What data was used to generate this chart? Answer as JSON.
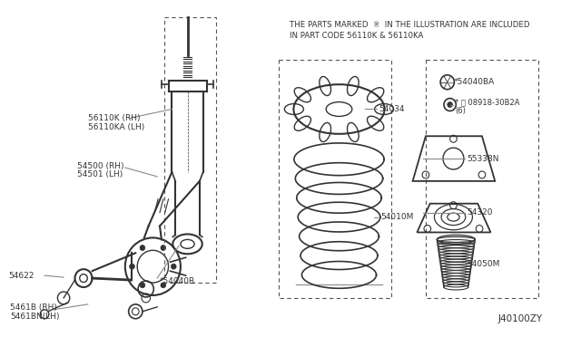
{
  "bg_color": "#ffffff",
  "fig_width": 6.4,
  "fig_height": 3.72,
  "notice_line1": "THE PARTS MARKED  ※  IN THE ILLUSTRATION ARE INCLUDED",
  "notice_line2": "IN PART CODE 56110K & 56110KA",
  "diagram_code": "J40100ZY"
}
